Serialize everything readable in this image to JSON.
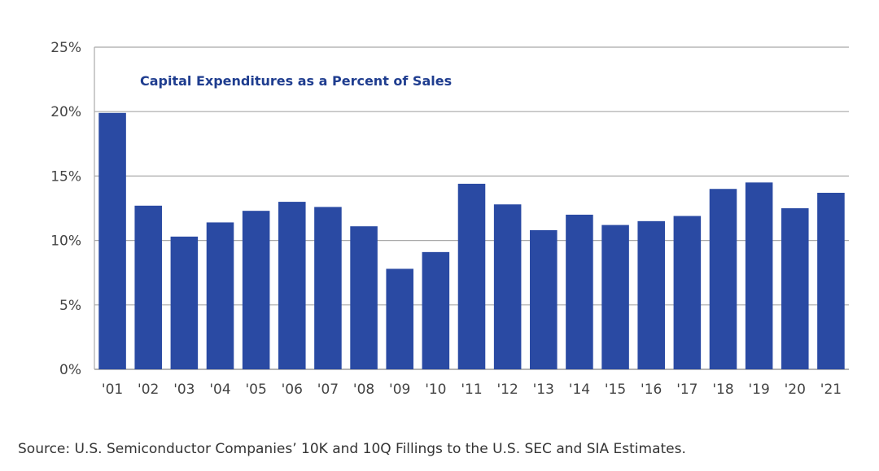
{
  "chart_data": {
    "type": "bar",
    "title": "Capital Expenditures as a Percent of Sales",
    "categories": [
      "'01",
      "'02",
      "'03",
      "'04",
      "'05",
      "'06",
      "'07",
      "'08",
      "'09",
      "'10",
      "'11",
      "'12",
      "'13",
      "'14",
      "'15",
      "'16",
      "'17",
      "'18",
      "'19",
      "'20",
      "'21"
    ],
    "series": [
      {
        "name": "Capital Expenditures as a Percent of Sales",
        "values": [
          19.9,
          12.7,
          10.3,
          11.4,
          12.3,
          13.0,
          12.6,
          11.1,
          7.8,
          9.1,
          14.4,
          12.8,
          10.8,
          12.0,
          11.2,
          11.5,
          11.9,
          14.0,
          14.5,
          12.5,
          13.7
        ]
      }
    ],
    "xlabel": "",
    "ylabel": "",
    "ylim": [
      0,
      25
    ],
    "yticks": [
      0,
      5,
      10,
      15,
      20,
      25
    ],
    "ytick_labels": [
      "0%",
      "5%",
      "10%",
      "15%",
      "20%",
      "25%"
    ],
    "grid": true,
    "bar_color": "#2a4aa3",
    "grid_color": "#a9a9a9"
  },
  "source": "Source: U.S. Semiconductor Companies’ 10K and 10Q Fillings to the U.S. SEC and SIA Estimates."
}
